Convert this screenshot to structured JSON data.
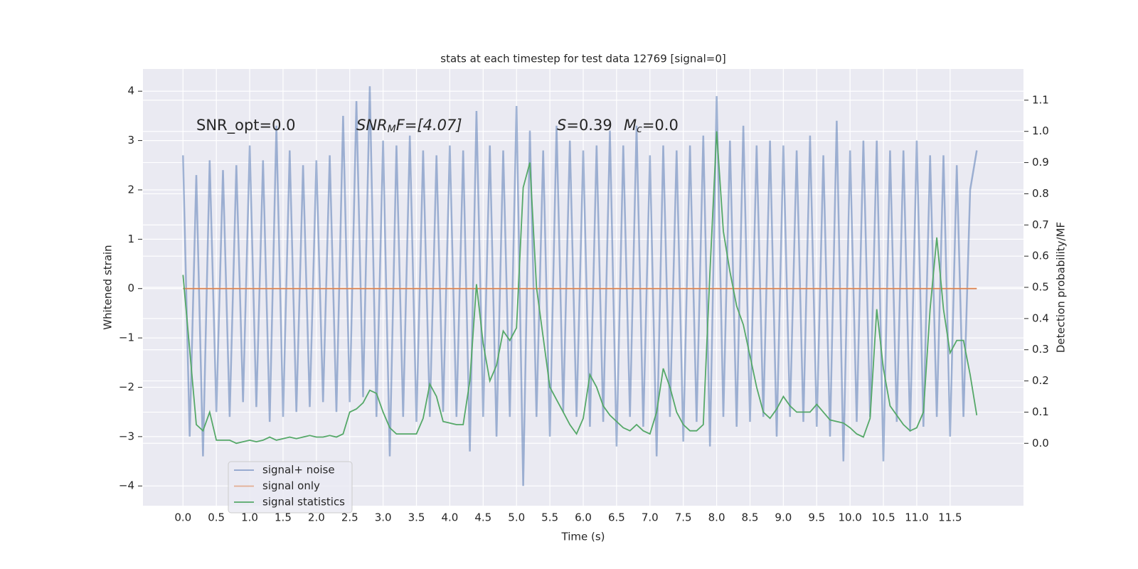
{
  "chart_data": {
    "type": "line",
    "title": "stats at each timestep for test data 12769 [signal=0]",
    "xlabel": "Time (s)",
    "ylabel": "Whitened strain",
    "y2label": "Detection probability/MF",
    "annotations": [
      {
        "parts": [
          "SNR_opt=0.0"
        ]
      },
      {
        "parts": [
          "SNR",
          "M",
          "F=[4.07]"
        ]
      },
      {
        "parts": [
          "S",
          "=0.39"
        ]
      },
      {
        "parts": [
          "M",
          "c",
          "=0.0"
        ]
      }
    ],
    "x": [
      0,
      0.1,
      0.2,
      0.3,
      0.4,
      0.5,
      0.6,
      0.7,
      0.8,
      0.9,
      1,
      1.1,
      1.2,
      1.3,
      1.4,
      1.5,
      1.6,
      1.7,
      1.8,
      1.9,
      2,
      2.1,
      2.2,
      2.3,
      2.4,
      2.5,
      2.6,
      2.7,
      2.8,
      2.9,
      3,
      3.1,
      3.2,
      3.3,
      3.4,
      3.5,
      3.6,
      3.7,
      3.8,
      3.9,
      4,
      4.1,
      4.2,
      4.3,
      4.4,
      4.5,
      4.6,
      4.7,
      4.8,
      4.9,
      5,
      5.1,
      5.2,
      5.3,
      5.4,
      5.5,
      5.6,
      5.7,
      5.8,
      5.9,
      6,
      6.1,
      6.2,
      6.3,
      6.4,
      6.5,
      6.6,
      6.7,
      6.8,
      6.9,
      7,
      7.1,
      7.2,
      7.3,
      7.4,
      7.5,
      7.6,
      7.7,
      7.8,
      7.9,
      8,
      8.1,
      8.2,
      8.3,
      8.4,
      8.5,
      8.6,
      8.7,
      8.8,
      8.9,
      9,
      9.1,
      9.2,
      9.3,
      9.4,
      9.5,
      9.6,
      9.7,
      9.8,
      9.9,
      10,
      10.1,
      10.2,
      10.3,
      10.4,
      10.5,
      10.6,
      10.7,
      10.8,
      10.9,
      11,
      11.1,
      11.2,
      11.3,
      11.4,
      11.5,
      11.6,
      11.7,
      11.8,
      11.9
    ],
    "series": [
      {
        "name": "signal+ noise",
        "color": "#4c72b0",
        "axis": "y",
        "values": [
          2.7,
          -3.0,
          2.3,
          -3.4,
          2.6,
          -2.5,
          2.4,
          -2.6,
          2.5,
          -2.3,
          2.9,
          -2.4,
          2.6,
          -2.7,
          3.3,
          -2.6,
          2.8,
          -2.5,
          2.5,
          -2.4,
          2.6,
          -2.3,
          2.7,
          -2.5,
          3.5,
          -2.3,
          3.8,
          -2.2,
          4.1,
          -2.6,
          3.0,
          -3.4,
          2.9,
          -2.6,
          3.1,
          -2.7,
          2.8,
          -2.6,
          2.7,
          -2.5,
          2.9,
          -2.6,
          2.8,
          -3.3,
          3.6,
          -2.6,
          2.9,
          -3.0,
          2.8,
          -2.6,
          3.7,
          -4.0,
          3.2,
          -2.6,
          2.8,
          -3.0,
          3.3,
          -2.5,
          3.0,
          -2.6,
          2.8,
          -2.8,
          2.9,
          -2.7,
          3.2,
          -3.2,
          2.9,
          -2.6,
          3.3,
          -2.8,
          2.7,
          -3.4,
          2.9,
          -2.6,
          2.8,
          -3.1,
          2.9,
          -2.7,
          3.1,
          -3.2,
          3.9,
          -2.6,
          3.0,
          -2.8,
          3.3,
          -2.7,
          2.9,
          -2.6,
          3.0,
          -3.0,
          2.9,
          -2.6,
          2.8,
          -2.7,
          3.1,
          -2.8,
          2.7,
          -3.0,
          3.4,
          -3.5,
          2.8,
          -2.7,
          3.0,
          -2.6,
          3.0,
          -3.5,
          2.8,
          -2.7,
          2.8,
          -2.9,
          3.0,
          -2.8,
          2.7,
          -2.6,
          2.7,
          -3.0,
          2.5,
          -2.6,
          2.0,
          2.8
        ]
      },
      {
        "name": "signal only",
        "color": "#dd8452",
        "axis": "y",
        "values": [
          0,
          0,
          0,
          0,
          0,
          0,
          0,
          0,
          0,
          0,
          0,
          0,
          0,
          0,
          0,
          0,
          0,
          0,
          0,
          0,
          0,
          0,
          0,
          0,
          0,
          0,
          0,
          0,
          0,
          0,
          0,
          0,
          0,
          0,
          0,
          0,
          0,
          0,
          0,
          0,
          0,
          0,
          0,
          0,
          0,
          0,
          0,
          0,
          0,
          0,
          0,
          0,
          0,
          0,
          0,
          0,
          0,
          0,
          0,
          0,
          0,
          0,
          0,
          0,
          0,
          0,
          0,
          0,
          0,
          0,
          0,
          0,
          0,
          0,
          0,
          0,
          0,
          0,
          0,
          0,
          0,
          0,
          0,
          0,
          0,
          0,
          0,
          0,
          0,
          0,
          0,
          0,
          0,
          0,
          0,
          0,
          0,
          0,
          0,
          0,
          0,
          0,
          0,
          0,
          0,
          0,
          0,
          0,
          0,
          0,
          0,
          0,
          0,
          0,
          0,
          0,
          0,
          0,
          0,
          0
        ]
      },
      {
        "name": "signal statistics",
        "color": "#55a868",
        "axis": "y2",
        "values": [
          0.54,
          0.3,
          0.06,
          0.04,
          0.1,
          0.01,
          0.01,
          0.01,
          0.0,
          0.005,
          0.01,
          0.005,
          0.01,
          0.02,
          0.01,
          0.015,
          0.02,
          0.015,
          0.02,
          0.025,
          0.02,
          0.02,
          0.025,
          0.02,
          0.03,
          0.1,
          0.11,
          0.13,
          0.17,
          0.16,
          0.1,
          0.05,
          0.03,
          0.03,
          0.03,
          0.03,
          0.08,
          0.19,
          0.15,
          0.07,
          0.065,
          0.06,
          0.06,
          0.2,
          0.51,
          0.32,
          0.2,
          0.25,
          0.36,
          0.33,
          0.37,
          0.82,
          0.9,
          0.5,
          0.34,
          0.18,
          0.14,
          0.1,
          0.06,
          0.03,
          0.08,
          0.22,
          0.18,
          0.12,
          0.09,
          0.07,
          0.05,
          0.04,
          0.06,
          0.04,
          0.03,
          0.1,
          0.24,
          0.18,
          0.1,
          0.06,
          0.04,
          0.04,
          0.06,
          0.55,
          1.0,
          0.68,
          0.55,
          0.44,
          0.38,
          0.28,
          0.18,
          0.1,
          0.08,
          0.11,
          0.15,
          0.12,
          0.1,
          0.1,
          0.1,
          0.125,
          0.1,
          0.075,
          0.07,
          0.065,
          0.05,
          0.03,
          0.02,
          0.08,
          0.43,
          0.24,
          0.12,
          0.09,
          0.06,
          0.04,
          0.05,
          0.1,
          0.43,
          0.66,
          0.43,
          0.29,
          0.33,
          0.33,
          0.22,
          0.09
        ]
      }
    ],
    "xlim": [
      -0.6,
      12.6
    ],
    "ylim": [
      -4.4,
      4.45
    ],
    "y2lim": [
      -0.2,
      1.2
    ],
    "xticks": [
      {
        "value": 0,
        "label": "0.0"
      },
      0.5,
      {
        "value": 1,
        "label": "1.0"
      },
      1.5,
      {
        "value": 2,
        "label": "2.0"
      },
      2.5,
      {
        "value": 3,
        "label": "3.0"
      },
      3.5,
      {
        "value": 4,
        "label": "4.0"
      },
      4.5,
      {
        "value": 5,
        "label": "5.0"
      },
      5.5,
      {
        "value": 6,
        "label": "6.0"
      },
      6.5,
      {
        "value": 7,
        "label": "7.0"
      },
      7.5,
      {
        "value": 8,
        "label": "8.0"
      },
      8.5,
      {
        "value": 9,
        "label": "9.0"
      },
      9.5,
      {
        "value": 10,
        "label": "10.0"
      },
      10.5,
      {
        "value": 11,
        "label": "11.0"
      },
      11.5
    ],
    "yticks": [
      {
        "value": -4,
        "label": "−4"
      },
      {
        "value": -3,
        "label": "−3"
      },
      {
        "value": -2,
        "label": "−2"
      },
      {
        "value": -1,
        "label": "−1"
      },
      0,
      1,
      2,
      3,
      4
    ],
    "y2ticks": [
      {
        "value": 0,
        "label": "0.0"
      },
      0.1,
      0.2,
      0.3,
      0.4,
      0.5,
      0.6,
      0.7,
      0.8,
      0.9,
      {
        "value": 1,
        "label": "1.0"
      },
      1.1
    ],
    "grid": true,
    "legend": "lower left"
  }
}
